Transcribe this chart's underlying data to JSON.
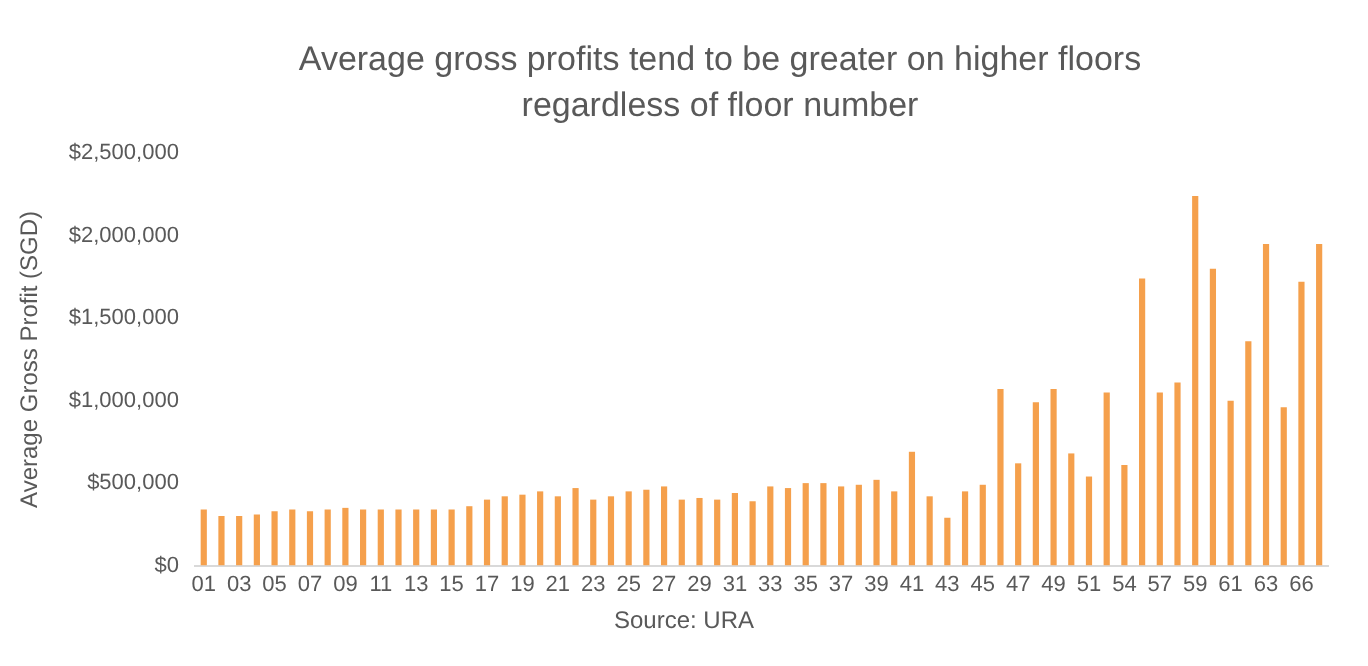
{
  "chart_data": {
    "type": "bar",
    "title": "Average gross profits tend to be greater on higher floors regardless of floor number",
    "ylabel": "Average Gross Profit (SGD)",
    "categories": [
      "01",
      null,
      "03",
      null,
      "05",
      null,
      "07",
      null,
      "09",
      null,
      "11",
      null,
      "13",
      null,
      "15",
      null,
      "17",
      null,
      "19",
      null,
      "21",
      null,
      "23",
      null,
      "25",
      null,
      "27",
      null,
      "29",
      null,
      "31",
      null,
      "33",
      null,
      "35",
      null,
      "37",
      null,
      "39",
      null,
      "41",
      null,
      "43",
      null,
      "45",
      null,
      "47",
      null,
      "49",
      null,
      "51",
      null,
      "54",
      null,
      "57",
      null,
      "59",
      null,
      "61",
      null,
      "63",
      null,
      "66",
      null
    ],
    "values": [
      340000,
      300000,
      300000,
      310000,
      330000,
      340000,
      330000,
      340000,
      350000,
      340000,
      340000,
      340000,
      340000,
      340000,
      340000,
      360000,
      400000,
      420000,
      430000,
      450000,
      420000,
      470000,
      400000,
      420000,
      450000,
      460000,
      480000,
      400000,
      410000,
      400000,
      440000,
      390000,
      480000,
      470000,
      500000,
      500000,
      480000,
      490000,
      520000,
      450000,
      690000,
      420000,
      290000,
      450000,
      490000,
      1070000,
      620000,
      990000,
      1070000,
      680000,
      540000,
      1050000,
      610000,
      1740000,
      1050000,
      1110000,
      2240000,
      1800000,
      1000000,
      1360000,
      1950000,
      960000,
      1720000,
      1950000
    ],
    "color": "#f5a04c",
    "ylim": [
      0,
      2500000
    ],
    "yticks": [
      {
        "value": 0,
        "label": "$0"
      },
      {
        "value": 500000,
        "label": "$500,000"
      },
      {
        "value": 1000000,
        "label": "$1,000,000"
      },
      {
        "value": 1500000,
        "label": "$1,500,000"
      },
      {
        "value": 2000000,
        "label": "$2,000,000"
      },
      {
        "value": 2500000,
        "label": "$2,500,000"
      }
    ],
    "grid": false,
    "legend": false,
    "annotations": [
      "Source: URA"
    ]
  }
}
